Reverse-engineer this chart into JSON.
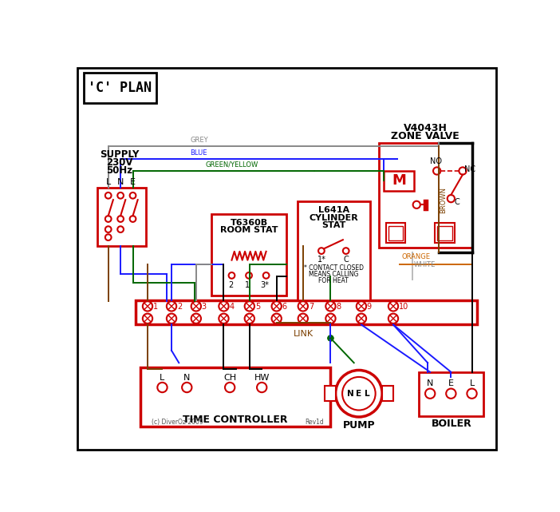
{
  "title": "'C' PLAN",
  "bg_color": "#ffffff",
  "red": "#cc0000",
  "blue": "#1a1aff",
  "green": "#006600",
  "grey": "#888888",
  "brown": "#7B3F00",
  "orange": "#cc6600",
  "black": "#000000",
  "zone_valve_label1": "V4043H",
  "zone_valve_label2": "ZONE VALVE",
  "supply_line1": "SUPPLY",
  "supply_line2": "230V",
  "supply_line3": "50Hz",
  "room_stat_line1": "T6360B",
  "room_stat_line2": "ROOM STAT",
  "cyl_stat_line1": "L641A",
  "cyl_stat_line2": "CYLINDER",
  "cyl_stat_line3": "STAT",
  "time_ctrl_label": "TIME CONTROLLER",
  "pump_label": "PUMP",
  "boiler_label": "BOILER",
  "terminal_numbers": [
    "1",
    "2",
    "3",
    "4",
    "5",
    "6",
    "7",
    "8",
    "9",
    "10"
  ],
  "link_label": "LINK",
  "footnote1": "* CONTACT CLOSED",
  "footnote2": "MEANS CALLING",
  "footnote3": "FOR HEAT",
  "copyright": "(c) DiverOz 2009",
  "revision": "Rev1d",
  "grey_label": "GREY",
  "blue_label": "BLUE",
  "gy_label": "GREEN/YELLOW",
  "brown_label": "BROWN",
  "white_label": "WHITE",
  "orange_label": "ORANGE"
}
